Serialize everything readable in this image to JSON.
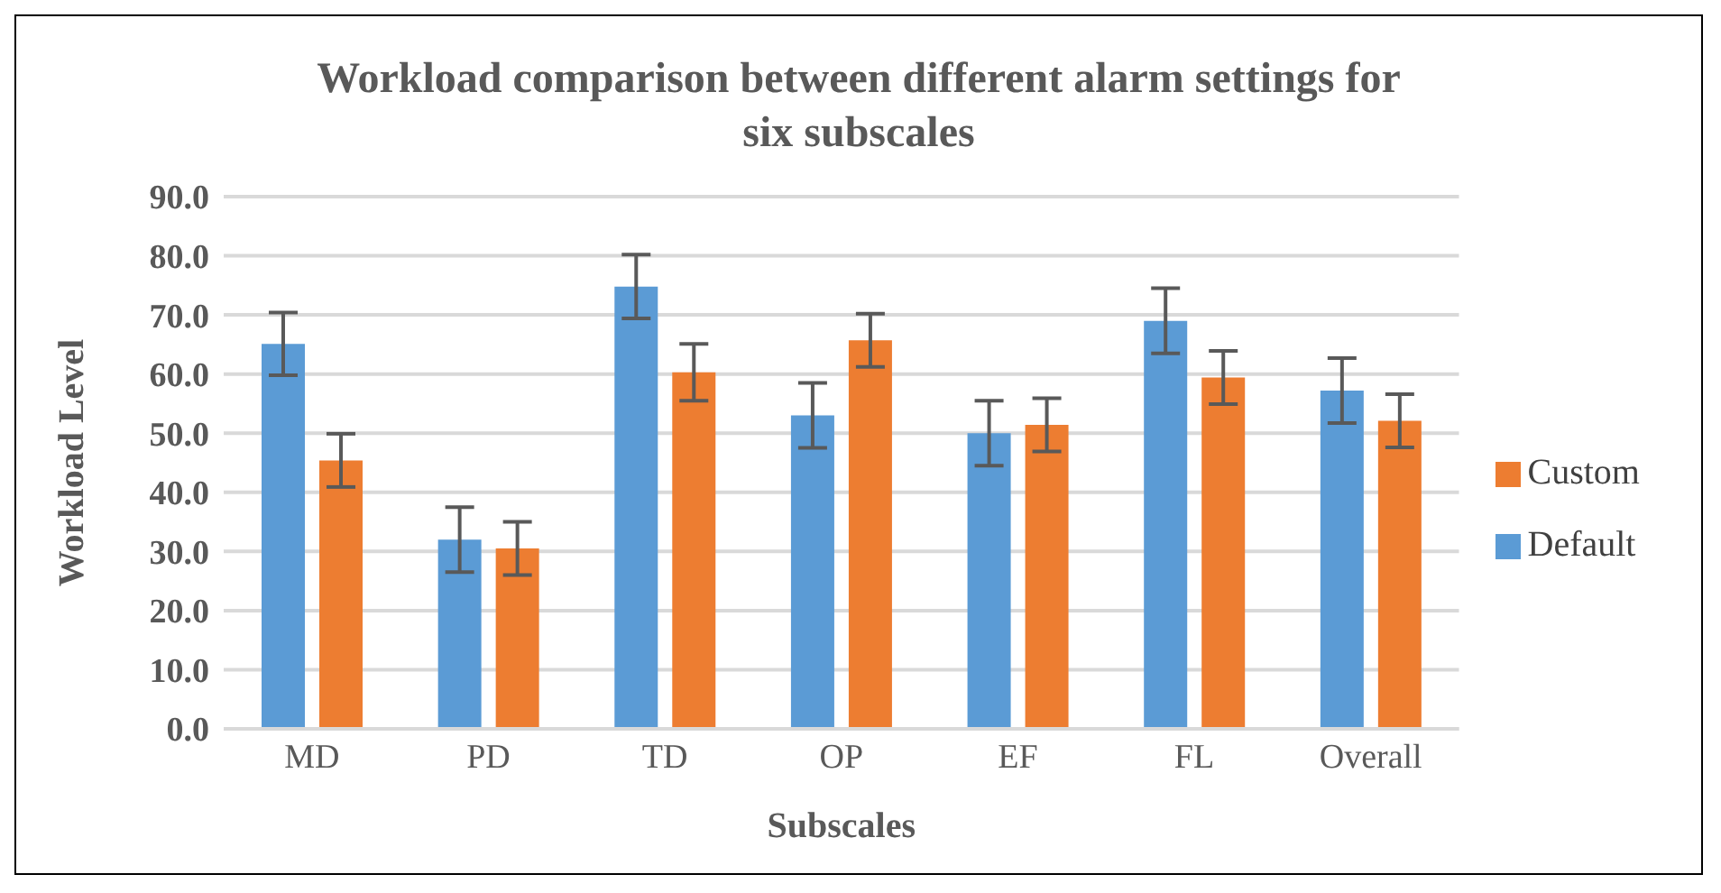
{
  "chart_data": {
    "type": "bar",
    "title": "Workload comparison between different alarm settings for six subscales",
    "xlabel": "Subscales",
    "ylabel": "Workload Level",
    "categories": [
      "MD",
      "PD",
      "TD",
      "OP",
      "EF",
      "FL",
      "Overall"
    ],
    "series": [
      {
        "name": "Default",
        "color": "#5b9bd5",
        "values": [
          65.1,
          32.0,
          74.8,
          53.0,
          50.0,
          69.0,
          57.2
        ],
        "errors": [
          5.3,
          5.5,
          5.4,
          5.5,
          5.5,
          5.5,
          5.5
        ]
      },
      {
        "name": "Custom",
        "color": "#ed7d31",
        "values": [
          45.4,
          30.5,
          60.3,
          65.7,
          51.4,
          59.4,
          52.1
        ],
        "errors": [
          4.5,
          4.5,
          4.8,
          4.5,
          4.5,
          4.5,
          4.5
        ]
      }
    ],
    "ylim": [
      0,
      90
    ],
    "yticks": [
      {
        "value": 0,
        "label": "0.0"
      },
      {
        "value": 10,
        "label": "10.0"
      },
      {
        "value": 20,
        "label": "20.0"
      },
      {
        "value": 30,
        "label": "30.0"
      },
      {
        "value": 40,
        "label": "40.0"
      },
      {
        "value": 50,
        "label": "50.0"
      },
      {
        "value": 60,
        "label": "60.0"
      },
      {
        "value": 70,
        "label": "70.0"
      },
      {
        "value": 80,
        "label": "80.0"
      },
      {
        "value": 90,
        "label": "90.0"
      }
    ],
    "grid": "y",
    "legend": "right"
  }
}
